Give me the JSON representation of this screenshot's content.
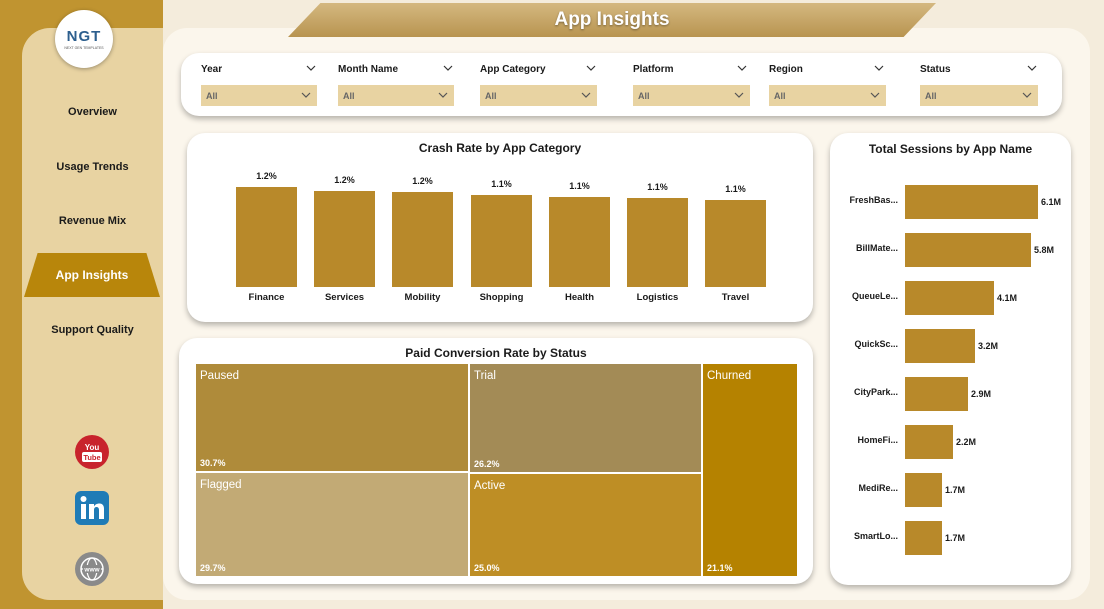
{
  "app": {
    "title": "App Insights",
    "logo_text": "NGT",
    "logo_subtext": "NEXT GEN TEMPLATES"
  },
  "nav": [
    {
      "label": "Overview",
      "active": false
    },
    {
      "label": "Usage Trends",
      "active": false
    },
    {
      "label": "Revenue Mix",
      "active": false
    },
    {
      "label": "App Insights",
      "active": true
    },
    {
      "label": "Support Quality",
      "active": false
    }
  ],
  "social": {
    "youtube_label": "You Tube",
    "web_label": "www"
  },
  "filters": [
    {
      "label": "Year",
      "value": "All"
    },
    {
      "label": "Month Name",
      "value": "All"
    },
    {
      "label": "App Category",
      "value": "All"
    },
    {
      "label": "Platform",
      "value": "All"
    },
    {
      "label": "Region",
      "value": "All"
    },
    {
      "label": "Status",
      "value": "All"
    }
  ],
  "colors": {
    "accent": "#b8860b",
    "bar": "#b8892a",
    "sidebar": "#e8d3a2",
    "frame": "#c09430"
  },
  "chart_data": [
    {
      "type": "bar",
      "title": "Crash Rate by App Category",
      "categories": [
        "Finance",
        "Services",
        "Mobility",
        "Shopping",
        "Health",
        "Logistics",
        "Travel"
      ],
      "values": [
        1.24,
        1.19,
        1.18,
        1.14,
        1.12,
        1.1,
        1.08
      ],
      "data_labels": [
        "1.2%",
        "1.2%",
        "1.2%",
        "1.1%",
        "1.1%",
        "1.1%",
        "1.1%"
      ],
      "ylim": [
        0,
        1.25
      ]
    },
    {
      "type": "bar",
      "orientation": "horizontal",
      "title": "Total Sessions by App Name",
      "categories": [
        "FreshBas...",
        "BillMate...",
        "QueueLe...",
        "QuickSc...",
        "CityPark...",
        "HomeFi...",
        "MediRe...",
        "SmartLo..."
      ],
      "values": [
        6.1,
        5.8,
        4.1,
        3.2,
        2.9,
        2.2,
        1.7,
        1.7
      ],
      "data_labels": [
        "6.1M",
        "5.8M",
        "4.1M",
        "3.2M",
        "2.9M",
        "2.2M",
        "1.7M",
        "1.7M"
      ],
      "unit": "M"
    },
    {
      "type": "treemap",
      "title": "Paid Conversion Rate by Status",
      "items": [
        {
          "name": "Paused",
          "value": 30.7,
          "label": "30.7%",
          "color": "#af8b3a"
        },
        {
          "name": "Flagged",
          "value": 29.7,
          "label": "29.7%",
          "color": "#c2aa75"
        },
        {
          "name": "Trial",
          "value": 26.2,
          "label": "26.2%",
          "color": "#a38b56"
        },
        {
          "name": "Active",
          "value": 25.0,
          "label": "25.0%",
          "color": "#be8e25"
        },
        {
          "name": "Churned",
          "value": 21.1,
          "label": "21.1%",
          "color": "#b58200"
        }
      ]
    }
  ]
}
